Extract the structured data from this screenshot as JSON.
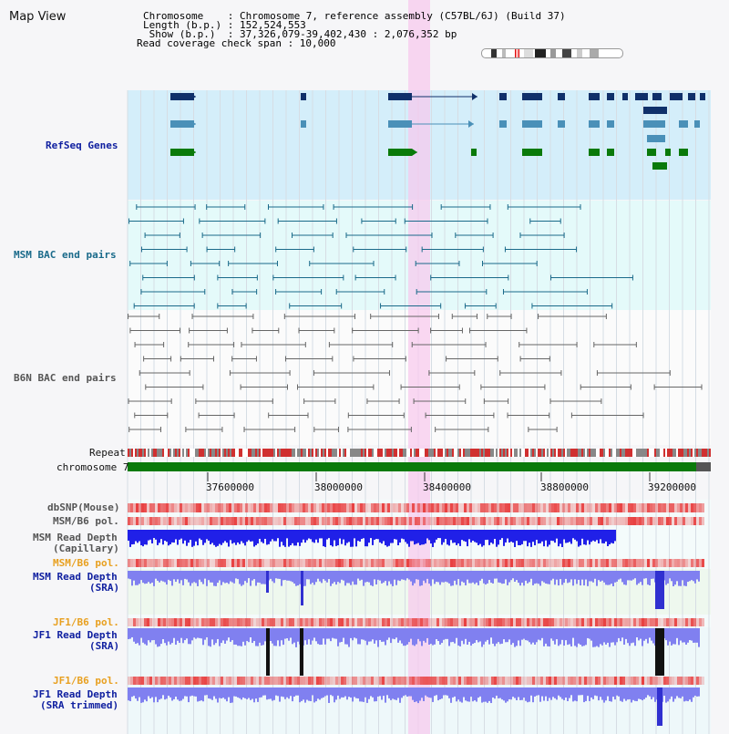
{
  "title": "Map View",
  "header": {
    "line1": "Chromosome    : Chromosome 7, reference assembly (C57BL/6J) (Build 37)",
    "line2": "Length (b.p.) : 152,524,553",
    "line3": " Show (b.p.)  : 37,326,079-39,402,430 : 2,076,352 bp",
    "line4": "Read coverage check span : 10,000"
  },
  "tracks": {
    "refseq": "RefSeq Genes",
    "msm_bac": "MSM BAC end pairs",
    "b6n_bac": "B6N BAC end pairs",
    "repeat": "Repeat",
    "chromosome": "chromosome 7",
    "dbsnp": "dbSNP(Mouse)",
    "msm_pol": "MSM/B6 pol.",
    "msm_depth_cap_1": "MSM Read Depth",
    "msm_depth_cap_2": "(Capillary)",
    "msm_pol2": "MSM/B6 pol.",
    "msm_depth_sra_1": "MSM Read Depth",
    "msm_depth_sra_2": "(SRA)",
    "jf1_pol": "JF1/B6 pol.",
    "jf1_depth_sra_1": "JF1 Read Depth",
    "jf1_depth_sra_2": "(SRA)",
    "jf1_pol2": "JF1/B6 pol.",
    "jf1_trim_1": "JF1 Read Depth",
    "jf1_trim_2": "(SRA trimmed)"
  },
  "axis_ticks": [
    "37600000",
    "38000000",
    "38400000",
    "38800000",
    "39200000"
  ],
  "colors": {
    "refseq_bg": "#d4eefa",
    "bac_bg": "#e4fafa",
    "highlight": "#f8c8ec",
    "gene_dark": "#10306a",
    "gene_mid": "#4a90b8",
    "gene_green": "#0a7a0a",
    "msm_line": "#1a6a8a",
    "b6n_line": "#666666",
    "chromosome_bar": "#0a7a0a",
    "depth_blue": "#2020e8",
    "depth_light": "#8080f0",
    "snp_red": "#e84040"
  }
}
